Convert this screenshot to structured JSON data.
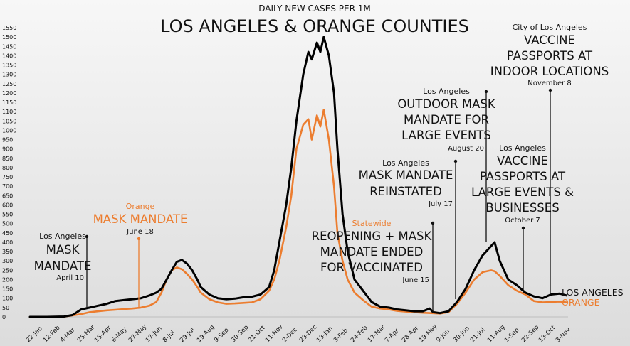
{
  "chart_data": {
    "type": "line",
    "title": "LOS ANGELES & ORANGE COUNTIES",
    "subtitle": "DAILY NEW CASES PER 1M",
    "ylim": [
      0,
      1550
    ],
    "yticks": [
      0,
      50,
      100,
      150,
      200,
      250,
      300,
      350,
      400,
      450,
      500,
      550,
      600,
      650,
      700,
      750,
      800,
      850,
      900,
      950,
      1000,
      1050,
      1100,
      1150,
      1200,
      1250,
      1300,
      1350,
      1400,
      1450,
      1500,
      1550
    ],
    "x_tick_labels": [
      "22-Jan",
      "12-Feb",
      "4-Mar",
      "25-Mar",
      "15-Apr",
      "6-May",
      "27-May",
      "17-Jun",
      "8-Jul",
      "29-Jul",
      "19-Aug",
      "9-Sep",
      "30-Sep",
      "21-Oct",
      "11-Nov",
      "2-Dec",
      "23-Dec",
      "13-Jan",
      "3-Feb",
      "24-Feb",
      "17-Mar",
      "7-Apr",
      "28-Apr",
      "19-May",
      "9-Jun",
      "30-Jun",
      "21-Jul",
      "11-Aug",
      "1-Sep",
      "22-Sep",
      "13-Oct",
      "3-Nov"
    ],
    "series": [
      {
        "name": "LOS ANGELES",
        "color": "#000000",
        "points": [
          [
            0,
            0
          ],
          [
            1,
            0
          ],
          [
            2,
            2
          ],
          [
            2.5,
            10
          ],
          [
            3,
            40
          ],
          [
            3.5,
            50
          ],
          [
            4,
            60
          ],
          [
            4.5,
            70
          ],
          [
            5,
            85
          ],
          [
            5.5,
            90
          ],
          [
            6,
            95
          ],
          [
            6.5,
            100
          ],
          [
            7,
            115
          ],
          [
            7.4,
            130
          ],
          [
            7.7,
            150
          ],
          [
            8,
            200
          ],
          [
            8.3,
            250
          ],
          [
            8.6,
            295
          ],
          [
            8.9,
            305
          ],
          [
            9.2,
            285
          ],
          [
            9.5,
            250
          ],
          [
            9.8,
            200
          ],
          [
            10,
            160
          ],
          [
            10.5,
            120
          ],
          [
            11,
            100
          ],
          [
            11.5,
            95
          ],
          [
            12,
            98
          ],
          [
            12.5,
            105
          ],
          [
            13,
            108
          ],
          [
            13.5,
            120
          ],
          [
            14,
            160
          ],
          [
            14.3,
            250
          ],
          [
            14.6,
            400
          ],
          [
            15,
            600
          ],
          [
            15.3,
            800
          ],
          [
            15.6,
            1050
          ],
          [
            16,
            1300
          ],
          [
            16.3,
            1420
          ],
          [
            16.5,
            1380
          ],
          [
            16.8,
            1470
          ],
          [
            17,
            1420
          ],
          [
            17.2,
            1500
          ],
          [
            17.5,
            1400
          ],
          [
            17.8,
            1200
          ],
          [
            18,
            900
          ],
          [
            18.3,
            550
          ],
          [
            18.6,
            350
          ],
          [
            19,
            200
          ],
          [
            19.5,
            140
          ],
          [
            20,
            80
          ],
          [
            20.5,
            55
          ],
          [
            21,
            50
          ],
          [
            21.5,
            40
          ],
          [
            22,
            35
          ],
          [
            22.5,
            30
          ],
          [
            23,
            30
          ],
          [
            23.4,
            45
          ],
          [
            23.6,
            25
          ],
          [
            24,
            20
          ],
          [
            24.5,
            30
          ],
          [
            25,
            80
          ],
          [
            25.5,
            150
          ],
          [
            26,
            250
          ],
          [
            26.5,
            330
          ],
          [
            27,
            380
          ],
          [
            27.2,
            400
          ],
          [
            27.5,
            300
          ],
          [
            28,
            200
          ],
          [
            28.5,
            170
          ],
          [
            29,
            130
          ],
          [
            29.5,
            110
          ],
          [
            30,
            100
          ],
          [
            30.5,
            120
          ],
          [
            31,
            125
          ],
          [
            31.4,
            115
          ]
        ]
      },
      {
        "name": "ORANGE",
        "color": "#ec7d2f",
        "points": [
          [
            0,
            0
          ],
          [
            1,
            0
          ],
          [
            2,
            1
          ],
          [
            3,
            15
          ],
          [
            3.5,
            25
          ],
          [
            4,
            30
          ],
          [
            4.5,
            35
          ],
          [
            5,
            38
          ],
          [
            5.5,
            42
          ],
          [
            6,
            45
          ],
          [
            6.5,
            50
          ],
          [
            7,
            60
          ],
          [
            7.4,
            80
          ],
          [
            7.7,
            130
          ],
          [
            8,
            200
          ],
          [
            8.3,
            250
          ],
          [
            8.6,
            265
          ],
          [
            8.9,
            255
          ],
          [
            9.2,
            230
          ],
          [
            9.5,
            200
          ],
          [
            9.8,
            160
          ],
          [
            10,
            130
          ],
          [
            10.5,
            95
          ],
          [
            11,
            78
          ],
          [
            11.5,
            70
          ],
          [
            12,
            72
          ],
          [
            12.5,
            75
          ],
          [
            13,
            78
          ],
          [
            13.5,
            95
          ],
          [
            14,
            140
          ],
          [
            14.3,
            200
          ],
          [
            14.6,
            300
          ],
          [
            15,
            480
          ],
          [
            15.3,
            650
          ],
          [
            15.6,
            900
          ],
          [
            16,
            1030
          ],
          [
            16.3,
            1060
          ],
          [
            16.5,
            950
          ],
          [
            16.8,
            1080
          ],
          [
            17,
            1020
          ],
          [
            17.2,
            1110
          ],
          [
            17.5,
            950
          ],
          [
            17.8,
            700
          ],
          [
            18,
            450
          ],
          [
            18.3,
            300
          ],
          [
            18.6,
            200
          ],
          [
            19,
            130
          ],
          [
            19.5,
            90
          ],
          [
            20,
            55
          ],
          [
            20.5,
            45
          ],
          [
            21,
            40
          ],
          [
            21.5,
            32
          ],
          [
            22,
            28
          ],
          [
            22.5,
            25
          ],
          [
            23,
            22
          ],
          [
            23.5,
            20
          ],
          [
            24,
            18
          ],
          [
            24.5,
            25
          ],
          [
            25,
            70
          ],
          [
            25.5,
            130
          ],
          [
            26,
            200
          ],
          [
            26.5,
            240
          ],
          [
            27,
            250
          ],
          [
            27.2,
            245
          ],
          [
            27.5,
            220
          ],
          [
            28,
            170
          ],
          [
            28.5,
            140
          ],
          [
            29,
            120
          ],
          [
            29.5,
            85
          ],
          [
            30,
            78
          ],
          [
            30.5,
            80
          ],
          [
            31,
            82
          ],
          [
            31.4,
            78
          ]
        ]
      }
    ],
    "annotations": [
      {
        "org": "Los Angeles",
        "text": [
          "MASK",
          "MANDATE"
        ],
        "date": "April 10",
        "color": "#111111"
      },
      {
        "org": "Orange",
        "text": [
          "MASK MANDATE"
        ],
        "date": "June 18",
        "color": "#ec7d2f"
      },
      {
        "org": "Statewide",
        "text": [
          "REOPENING + MASK",
          "MANDATE ENDED",
          "FOR VACCINATED"
        ],
        "date": "June 15",
        "color": "#ec7d2f"
      },
      {
        "org": "Los Angeles",
        "text": [
          "MASK MANDATE",
          "REINSTATED"
        ],
        "date": "July 17",
        "color": "#111111"
      },
      {
        "org": "Los Angeles",
        "text": [
          "OUTDOOR MASK",
          "MANDATE FOR",
          "LARGE EVENTS"
        ],
        "date": "August 20",
        "color": "#111111"
      },
      {
        "org": "Los Angeles",
        "text": [
          "VACCINE",
          "PASSPORTS AT",
          "LARGE EVENTS &",
          "BUSINESSES"
        ],
        "date": "October 7",
        "color": "#111111"
      },
      {
        "org": "City of Los Angeles",
        "text": [
          "VACCINE",
          "PASSPORTS AT",
          "INDOOR LOCATIONS"
        ],
        "date": "November 8",
        "color": "#111111"
      }
    ],
    "legend": [
      {
        "label": "LOS ANGELES",
        "color": "#111111"
      },
      {
        "label": "ORANGE",
        "color": "#ec7d2f"
      }
    ]
  }
}
